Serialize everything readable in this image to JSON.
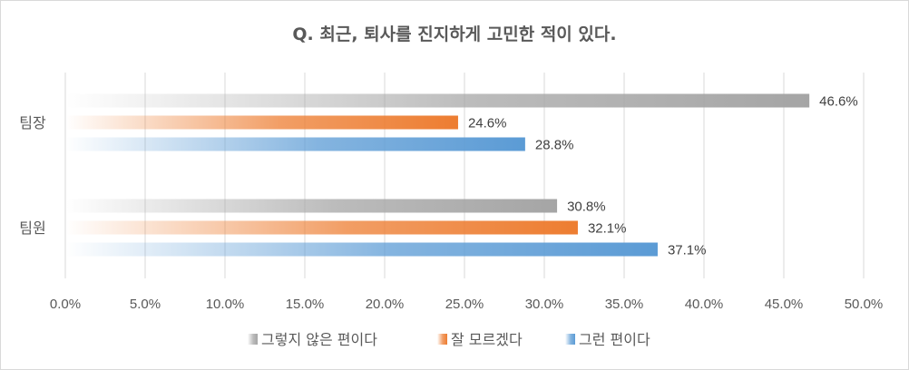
{
  "chart_data": {
    "type": "bar",
    "orientation": "horizontal",
    "title": "Q. 최근, 퇴사를 진지하게 고민한 적이 있다.",
    "categories": [
      "팀장",
      "팀원"
    ],
    "series": [
      {
        "name": "그렇지 않은 편이다",
        "values": [
          46.6,
          30.8
        ],
        "labels": [
          "46.6%",
          "30.8%"
        ],
        "color": "#a5a5a5"
      },
      {
        "name": "잘 모르겠다",
        "values": [
          24.6,
          32.1
        ],
        "labels": [
          "24.6%",
          "32.1%"
        ],
        "color": "#ed7d31"
      },
      {
        "name": "그런 편이다",
        "values": [
          28.8,
          37.1
        ],
        "labels": [
          "28.8%",
          "37.1%"
        ],
        "color": "#5b9bd5"
      }
    ],
    "xlim": [
      0,
      50
    ],
    "xticks": [
      "0.0%",
      "5.0%",
      "10.0%",
      "15.0%",
      "20.0%",
      "25.0%",
      "30.0%",
      "35.0%",
      "40.0%",
      "45.0%",
      "50.0%"
    ],
    "grid": true,
    "legend_position": "bottom",
    "fill_style": "gradient-fade-left"
  }
}
